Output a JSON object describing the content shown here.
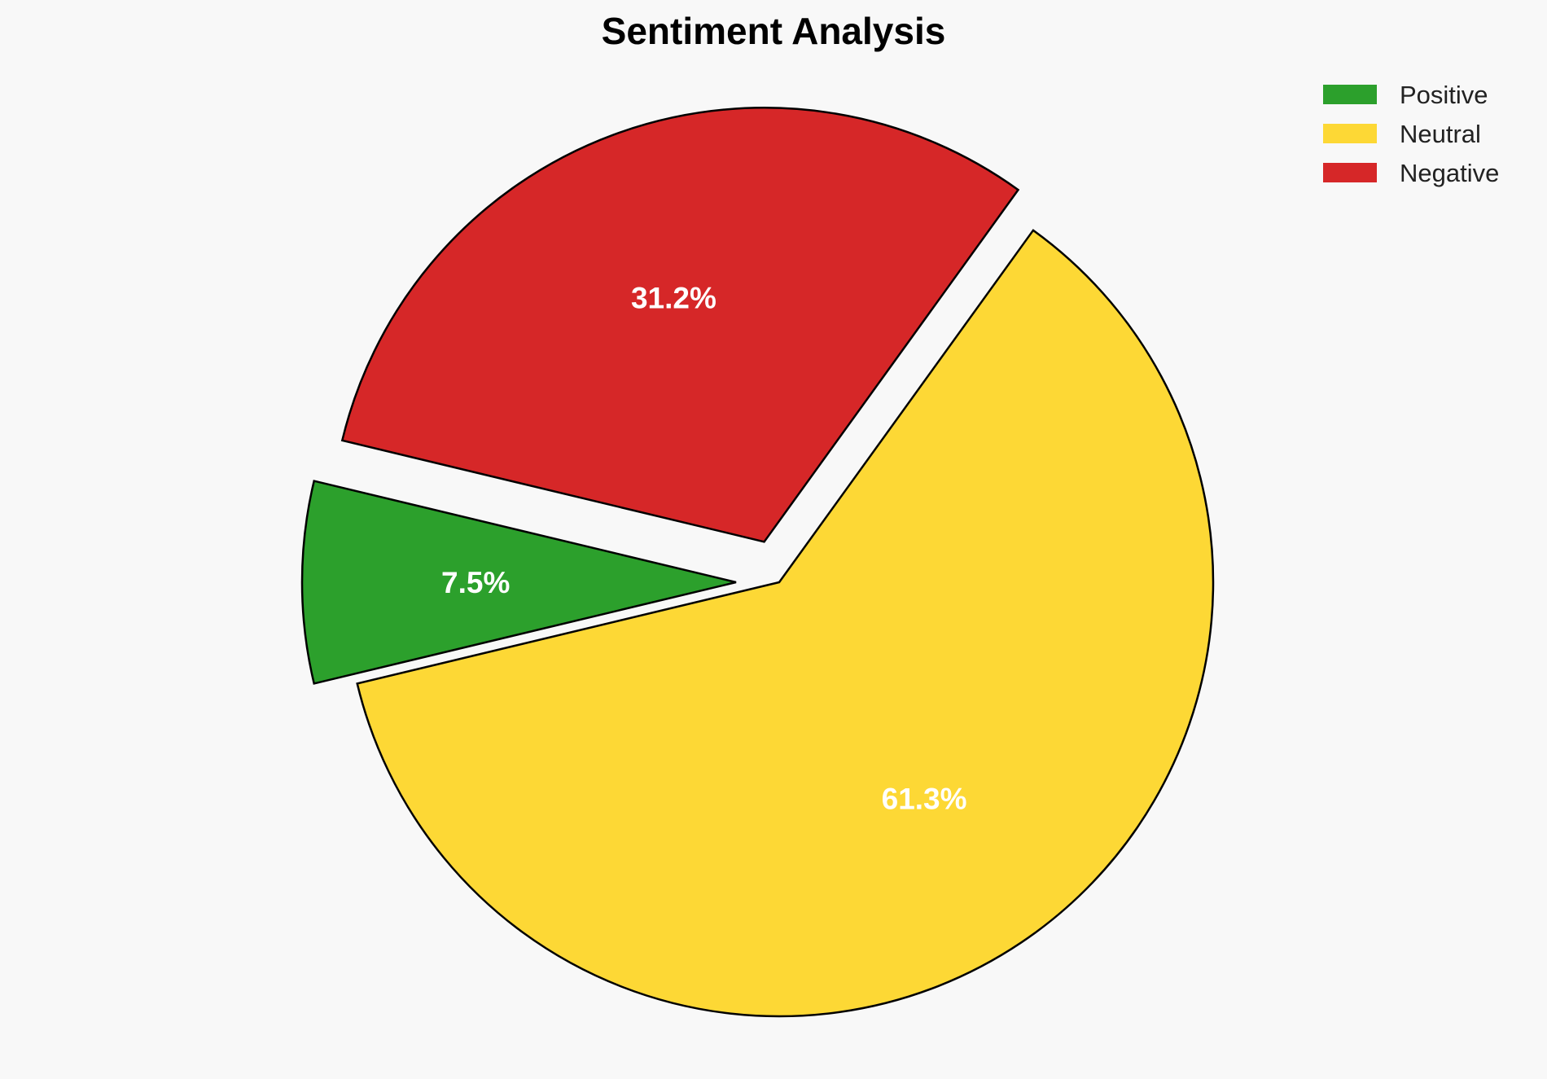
{
  "chart_data": {
    "type": "pie",
    "title": "Sentiment Analysis",
    "slices": [
      {
        "name": "Positive",
        "value": 7.5,
        "label": "7.5%",
        "color": "#2ca02c",
        "exploded": true
      },
      {
        "name": "Neutral",
        "value": 61.3,
        "label": "61.3%",
        "color": "#fdd835",
        "exploded": false
      },
      {
        "name": "Negative",
        "value": 31.2,
        "label": "31.2%",
        "color": "#d62728",
        "exploded": true
      }
    ],
    "start_angle_deg": 166.5,
    "direction": "counterclockwise",
    "legend": {
      "position": "top-right",
      "entries": [
        "Positive",
        "Neutral",
        "Negative"
      ]
    }
  }
}
